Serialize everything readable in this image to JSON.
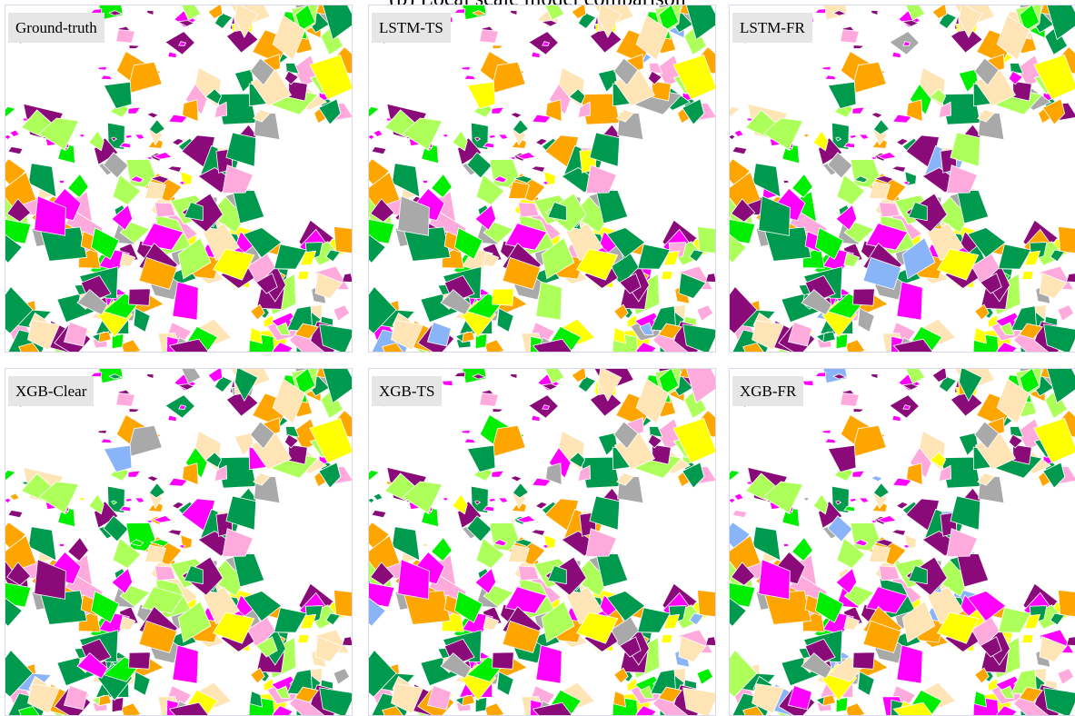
{
  "title": "(b) Local scale model comparison",
  "panels": [
    {
      "label": "Ground-truth"
    },
    {
      "label": "LSTM-TS"
    },
    {
      "label": "LSTM-FR"
    },
    {
      "label": "XGB-Clear"
    },
    {
      "label": "XGB-TS"
    },
    {
      "label": "XGB-FR"
    }
  ]
}
